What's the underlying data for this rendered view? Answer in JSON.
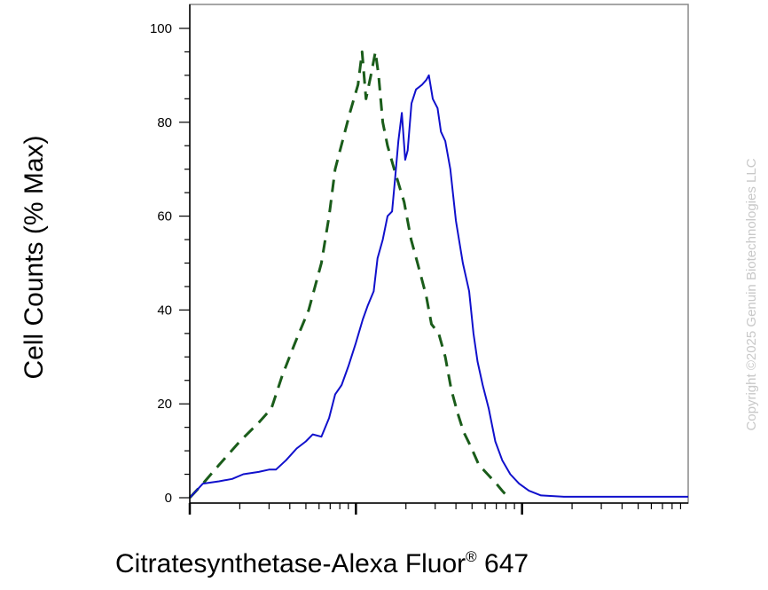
{
  "chart_data": {
    "type": "line",
    "xlabel": "Citratesynthetase-Alexa Fluor",
    "xlabel_sup": "®",
    "xlabel_suffix": " 647",
    "ylabel": "Cell Counts (% Max)",
    "x_scale": "log",
    "xlim": [
      1,
      1000
    ],
    "ylim": [
      0,
      105
    ],
    "y_ticks": [
      0,
      20,
      40,
      60,
      80,
      100
    ],
    "y_tick_labels": [
      "0",
      "20",
      "40",
      "60",
      "80",
      "100"
    ],
    "x_major_ticks": [
      1,
      10,
      100
    ],
    "grid": false,
    "series": [
      {
        "style": "dashed",
        "color": "#1a5c1a",
        "points": [
          [
            1.0,
            0
          ],
          [
            1.2,
            3
          ],
          [
            1.5,
            7
          ],
          [
            2.0,
            12
          ],
          [
            2.6,
            16
          ],
          [
            3.1,
            19
          ],
          [
            3.6,
            26
          ],
          [
            4.3,
            33
          ],
          [
            5.2,
            40
          ],
          [
            6.2,
            50
          ],
          [
            6.9,
            60
          ],
          [
            7.5,
            70
          ],
          [
            8.3,
            76
          ],
          [
            9.2,
            82
          ],
          [
            10.3,
            88
          ],
          [
            10.9,
            95
          ],
          [
            11.5,
            85
          ],
          [
            12.3,
            90
          ],
          [
            13.1,
            95
          ],
          [
            13.7,
            90
          ],
          [
            14.5,
            80
          ],
          [
            15.5,
            75
          ],
          [
            17.0,
            70
          ],
          [
            19.5,
            63
          ],
          [
            21.5,
            55
          ],
          [
            23.5,
            50
          ],
          [
            26.5,
            43
          ],
          [
            28.5,
            37
          ],
          [
            31.5,
            35
          ],
          [
            34.5,
            30
          ],
          [
            37.5,
            23
          ],
          [
            41.0,
            18
          ],
          [
            44.5,
            14
          ],
          [
            49.0,
            11
          ],
          [
            55.0,
            7
          ],
          [
            62.0,
            5
          ],
          [
            70.0,
            3
          ],
          [
            76.0,
            1.5
          ],
          [
            83.0,
            0
          ]
        ]
      },
      {
        "style": "solid",
        "color": "#1010cc",
        "points": [
          [
            1.0,
            0
          ],
          [
            1.2,
            3
          ],
          [
            1.5,
            3.5
          ],
          [
            1.8,
            4
          ],
          [
            2.1,
            5
          ],
          [
            2.6,
            5.5
          ],
          [
            3.0,
            6
          ],
          [
            3.3,
            6
          ],
          [
            3.8,
            8
          ],
          [
            4.4,
            10.5
          ],
          [
            5.0,
            12
          ],
          [
            5.5,
            13.5
          ],
          [
            6.2,
            13
          ],
          [
            6.9,
            17
          ],
          [
            7.5,
            22
          ],
          [
            8.2,
            24
          ],
          [
            9.0,
            28
          ],
          [
            10.0,
            33
          ],
          [
            11.0,
            38
          ],
          [
            11.8,
            41
          ],
          [
            12.8,
            44
          ],
          [
            13.5,
            51
          ],
          [
            14.5,
            55
          ],
          [
            15.5,
            60
          ],
          [
            16.5,
            61
          ],
          [
            17.2,
            68
          ],
          [
            18.0,
            76
          ],
          [
            18.9,
            82
          ],
          [
            19.8,
            72
          ],
          [
            20.5,
            74
          ],
          [
            21.6,
            84
          ],
          [
            23.0,
            87
          ],
          [
            25.0,
            88
          ],
          [
            26.5,
            89
          ],
          [
            27.5,
            90
          ],
          [
            29.0,
            85
          ],
          [
            31.0,
            83
          ],
          [
            32.5,
            78
          ],
          [
            34.5,
            76
          ],
          [
            37.0,
            70
          ],
          [
            40.0,
            59
          ],
          [
            44.0,
            50
          ],
          [
            48.0,
            44
          ],
          [
            51.0,
            35
          ],
          [
            54.0,
            29
          ],
          [
            58.0,
            24
          ],
          [
            63.0,
            19
          ],
          [
            69.0,
            12
          ],
          [
            76.0,
            8
          ],
          [
            85.0,
            5
          ],
          [
            96.0,
            3
          ],
          [
            110.0,
            1.5
          ],
          [
            130.0,
            0.5
          ],
          [
            180.0,
            0.2
          ],
          [
            1000.0,
            0.2
          ]
        ]
      }
    ]
  },
  "copyright": "Copyright ©2025 Genuin Biotechnologies LLC"
}
